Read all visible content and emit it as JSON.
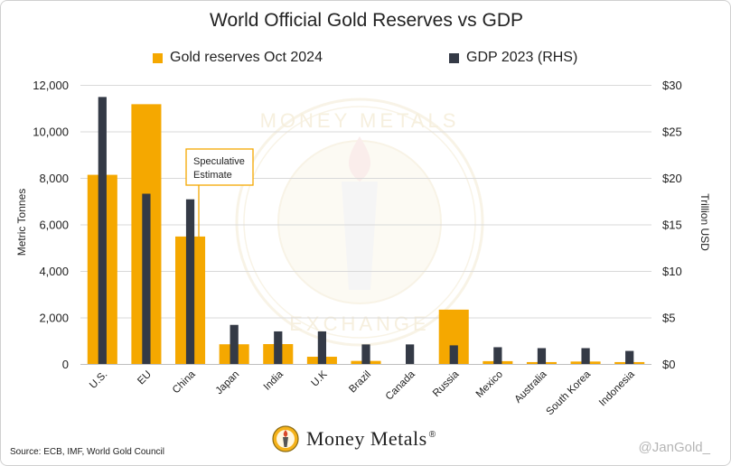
{
  "chart_data": {
    "type": "bar",
    "title": "World Official Gold Reserves vs GDP",
    "categories": [
      "U.S.",
      "EU",
      "China",
      "Japan",
      "India",
      "U.K",
      "Brazil",
      "Canada",
      "Russia",
      "Mexico",
      "Australia",
      "South Korea",
      "Indonesia"
    ],
    "series": [
      {
        "name": "Gold reserves Oct 2024",
        "axis": "left",
        "color": "#f5a800",
        "values": [
          8133,
          11170,
          5480,
          846,
          854,
          310,
          130,
          0,
          2335,
          120,
          80,
          104,
          80
        ]
      },
      {
        "name": "GDP 2023 (RHS)",
        "axis": "right",
        "color": "#343a46",
        "values": [
          28.7,
          18.3,
          17.7,
          4.2,
          3.5,
          3.5,
          2.1,
          2.1,
          2.0,
          1.8,
          1.7,
          1.7,
          1.4
        ]
      }
    ],
    "ylabel": "Metric Tonnes",
    "ylabel_right": "Trillion USD",
    "ylim": [
      0,
      12000
    ],
    "ylim_right": [
      0,
      30
    ],
    "yticks": [
      "0",
      "2,000",
      "4,000",
      "6,000",
      "8,000",
      "10,000",
      "12,000"
    ],
    "yticks_right": [
      "$0",
      "$5",
      "$10",
      "$15",
      "$20",
      "$25",
      "$30"
    ],
    "grid": true,
    "legend_position": "top",
    "annotation": {
      "text_line1": "Speculative",
      "text_line2": "Estimate",
      "target": "China"
    }
  },
  "watermark": {
    "top_text": "MONEY METALS",
    "bottom_text": "EXCHANGE"
  },
  "footer": {
    "source": "Source: ECB, IMF, World Gold Council",
    "logo_text": "Money Metals",
    "logo_mark": "®",
    "handle": "@JanGold_"
  },
  "colors": {
    "gold": "#f5a800",
    "navy": "#343a46",
    "grid": "#d9d9d9"
  }
}
